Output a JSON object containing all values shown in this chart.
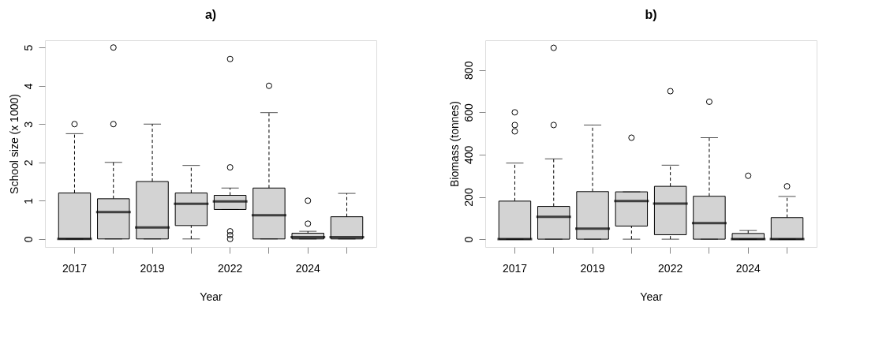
{
  "chart_data": [
    {
      "type": "box",
      "title": "a)",
      "xlabel": "Year",
      "ylabel": "School size (x 1000)",
      "categories": [
        "2017",
        null,
        "2019",
        null,
        "2022",
        null,
        "2024",
        null
      ],
      "ylim": [
        -0.21,
        5.19
      ],
      "yticks": [
        0,
        1,
        2,
        3,
        4,
        5
      ],
      "marker": "circle",
      "series": [
        {
          "color": "#d3d3d3",
          "boxes": [
            {
              "low": 0,
              "q1": 0,
              "median": 0,
              "q3": 1.2,
              "high": 2.75,
              "outliers": [
                3.0
              ]
            },
            {
              "low": 0,
              "q1": 0,
              "median": 0.7,
              "q3": 1.05,
              "high": 2.0,
              "outliers": [
                3.0,
                5.0
              ]
            },
            {
              "low": 0,
              "q1": 0,
              "median": 0.3,
              "q3": 1.5,
              "high": 3.0
            },
            {
              "low": 0,
              "q1": 0.35,
              "median": 0.92,
              "q3": 1.2,
              "high": 1.92
            },
            {
              "low": 0.77,
              "q1": 0.77,
              "median": 0.98,
              "q3": 1.14,
              "high": 1.33,
              "outliers": [
                0,
                0.1,
                0.2,
                1.87,
                4.7
              ]
            },
            {
              "low": 0,
              "q1": 0,
              "median": 0.62,
              "q3": 1.33,
              "high": 3.3,
              "outliers": [
                4.0
              ]
            },
            {
              "low": 0,
              "q1": 0,
              "median": 0.05,
              "q3": 0.15,
              "high": 0.2,
              "outliers": [
                0.4,
                1.0
              ]
            },
            {
              "low": 0,
              "q1": 0,
              "median": 0.05,
              "q3": 0.58,
              "high": 1.19
            }
          ]
        }
      ]
    },
    {
      "type": "box",
      "title": "b)",
      "xlabel": "Year",
      "ylabel": "Biomass (tonnes)",
      "categories": [
        "2017",
        null,
        "2019",
        null,
        "2022",
        null,
        "2024",
        null
      ],
      "ylim": [
        -37,
        941
      ],
      "yticks": [
        0,
        200,
        400,
        600,
        800
      ],
      "marker": "circle",
      "series": [
        {
          "color": "#d3d3d3",
          "boxes": [
            {
              "low": 0,
              "q1": 0,
              "median": 0,
              "q3": 180,
              "high": 360,
              "outliers": [
                510,
                540,
                600
              ]
            },
            {
              "low": 0,
              "q1": 0,
              "median": 106,
              "q3": 155,
              "high": 380,
              "outliers": [
                540,
                905
              ]
            },
            {
              "low": 0,
              "q1": 0,
              "median": 50,
              "q3": 225,
              "high": 540
            },
            {
              "low": 0,
              "q1": 62,
              "median": 180,
              "q3": 224,
              "high": 224,
              "outliers": [
                480
              ]
            },
            {
              "low": 0,
              "q1": 21,
              "median": 168,
              "q3": 250,
              "high": 350,
              "outliers": [
                700
              ]
            },
            {
              "low": 0,
              "q1": 0,
              "median": 76,
              "q3": 203,
              "high": 480,
              "outliers": [
                650
              ]
            },
            {
              "low": 0,
              "q1": 0,
              "median": 0,
              "q3": 27,
              "high": 41,
              "outliers": [
                300
              ]
            },
            {
              "low": 0,
              "q1": 0,
              "median": 0,
              "q3": 102,
              "high": 202,
              "outliers": [
                250
              ]
            }
          ]
        }
      ]
    }
  ]
}
